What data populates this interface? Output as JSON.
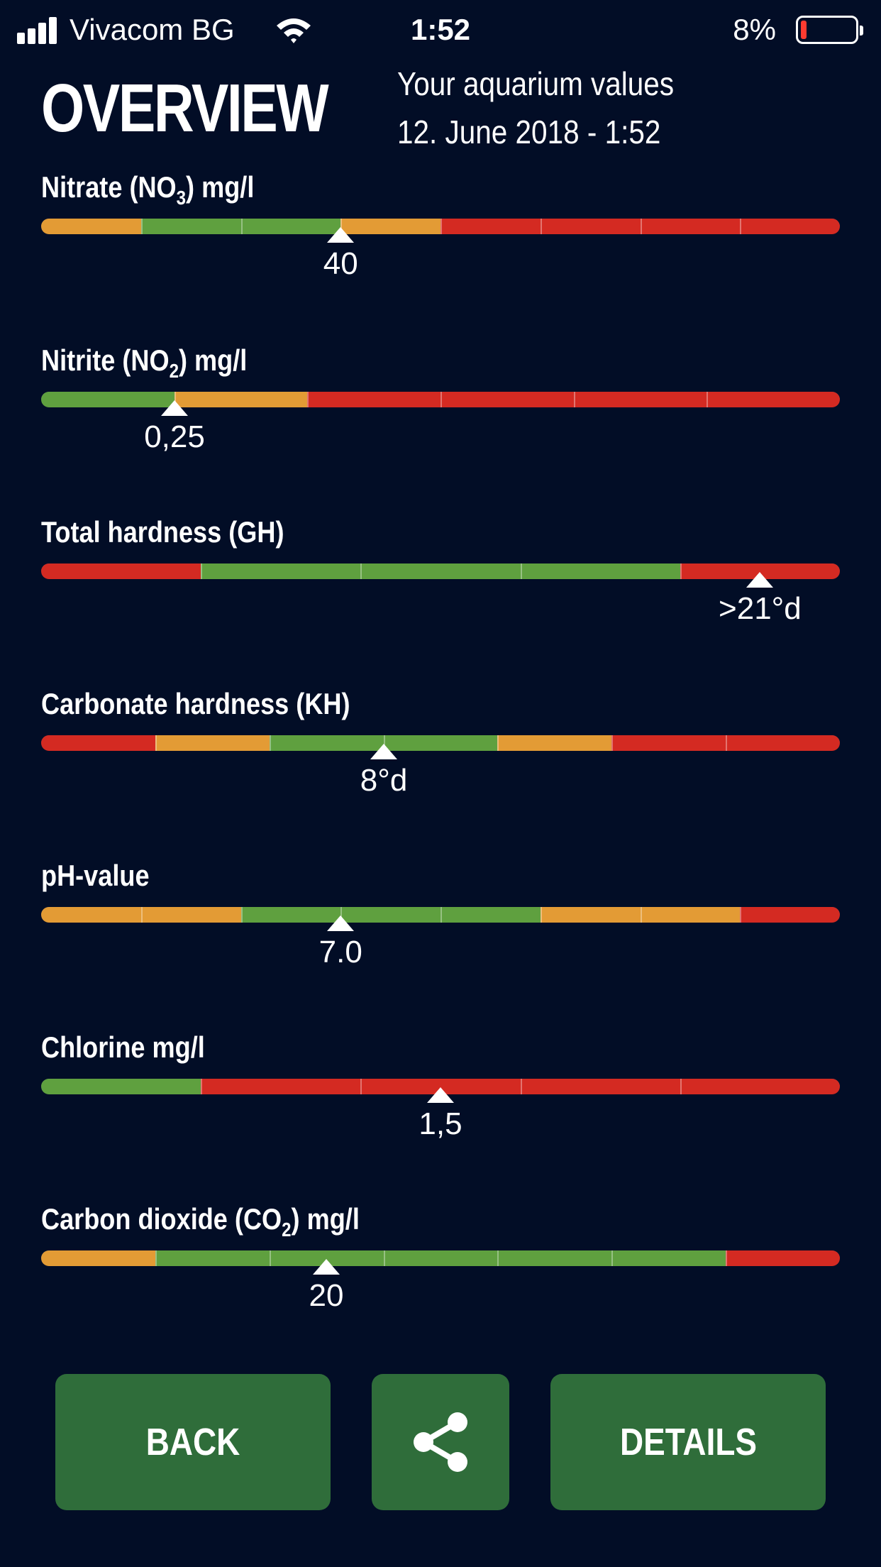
{
  "status_bar": {
    "carrier": "Vivacom BG",
    "time": "1:52",
    "battery_percent": "8%",
    "battery_level": 0.08,
    "signal_icon": "signal-bars-icon",
    "wifi_icon": "wifi-icon",
    "battery_icon": "battery-low-icon"
  },
  "header": {
    "title": "OVERVIEW",
    "subtitle_line1": "Your aquarium values",
    "subtitle_line2": "12. June 2018 - 1:52"
  },
  "colors": {
    "background": "#020d26",
    "orange": "#e39b35",
    "green": "#5fa03f",
    "red": "#d42a22",
    "button": "#2f6d3a",
    "marker": "#ffffff"
  },
  "parameters": [
    {
      "label_pre": "Nitrate (NO",
      "label_sub": "3",
      "label_post": ") mg/l",
      "segments": [
        "orange",
        "green",
        "green",
        "orange",
        "red",
        "red",
        "red",
        "red"
      ],
      "marker_position": 0.375,
      "value": "40"
    },
    {
      "label_pre": "Nitrite (NO",
      "label_sub": "2",
      "label_post": ") mg/l",
      "segments": [
        "green",
        "orange",
        "red",
        "red",
        "red",
        "red"
      ],
      "marker_position": 0.167,
      "value": "0,25"
    },
    {
      "label_pre": "Total hardness (GH)",
      "label_sub": "",
      "label_post": "",
      "segments": [
        "red",
        "green",
        "green",
        "green",
        "red"
      ],
      "marker_position": 0.9,
      "value": ">21°d"
    },
    {
      "label_pre": "Carbonate hardness (KH)",
      "label_sub": "",
      "label_post": "",
      "segments": [
        "red",
        "orange",
        "green",
        "green",
        "orange",
        "red",
        "red"
      ],
      "marker_position": 0.429,
      "value": "8°d"
    },
    {
      "label_pre": "pH-value",
      "label_sub": "",
      "label_post": "",
      "segments": [
        "orange",
        "orange",
        "green",
        "green",
        "green",
        "orange",
        "orange",
        "red"
      ],
      "marker_position": 0.375,
      "value": "7.0"
    },
    {
      "label_pre": "Chlorine mg/l",
      "label_sub": "",
      "label_post": "",
      "segments": [
        "green",
        "red",
        "red",
        "red",
        "red"
      ],
      "marker_position": 0.5,
      "value": "1,5"
    },
    {
      "label_pre": "Carbon dioxide (CO",
      "label_sub": "2",
      "label_post": ") mg/l",
      "segments": [
        "orange",
        "green",
        "green",
        "green",
        "green",
        "green",
        "red"
      ],
      "marker_position": 0.357,
      "value": "20"
    }
  ],
  "buttons": {
    "back_label": "BACK",
    "share_icon": "share-icon",
    "details_label": "DETAILS"
  }
}
